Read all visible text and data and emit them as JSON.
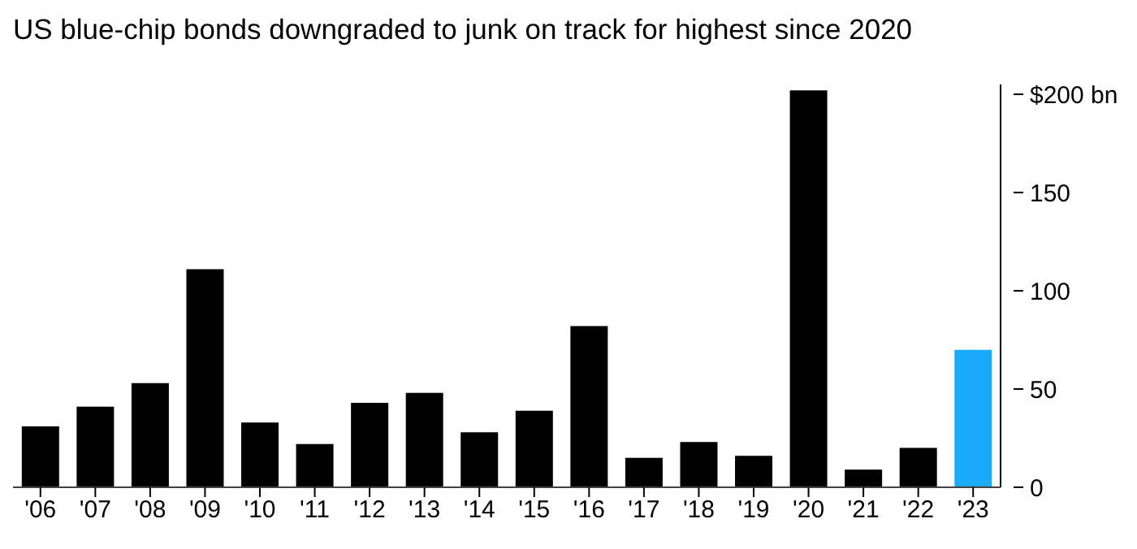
{
  "chart_data": {
    "type": "bar",
    "title": "US blue-chip bonds downgraded to junk on track for highest since 2020",
    "categories": [
      "'06",
      "'07",
      "'08",
      "'09",
      "'10",
      "'11",
      "'12",
      "'13",
      "'14",
      "'15",
      "'16",
      "'17",
      "'18",
      "'19",
      "'20",
      "'21",
      "'22",
      "'23"
    ],
    "values": [
      31,
      41,
      53,
      111,
      33,
      22,
      43,
      48,
      28,
      39,
      82,
      15,
      23,
      16,
      202,
      9,
      20,
      70
    ],
    "colors": [
      "#000000",
      "#000000",
      "#000000",
      "#000000",
      "#000000",
      "#000000",
      "#000000",
      "#000000",
      "#000000",
      "#000000",
      "#000000",
      "#000000",
      "#000000",
      "#000000",
      "#000000",
      "#000000",
      "#000000",
      "#1aaaf7"
    ],
    "ylim": [
      0,
      205
    ],
    "yticks": [
      0,
      50,
      100,
      150,
      {
        "value": 200,
        "label": "$200 bn"
      }
    ],
    "grid": false,
    "legend": false
  }
}
